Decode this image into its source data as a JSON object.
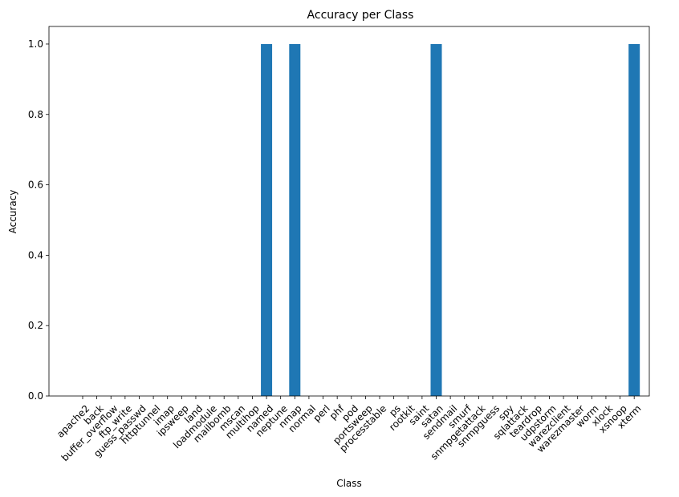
{
  "chart_data": {
    "type": "bar",
    "title": "Accuracy per Class",
    "xlabel": "Class",
    "ylabel": "Accuracy",
    "ylim": [
      0,
      1.05
    ],
    "yticks": [
      "0.0",
      "0.2",
      "0.4",
      "0.6",
      "0.8",
      "1.0"
    ],
    "bar_color": "#1f77b4",
    "grid": false,
    "categories": [
      "apache2",
      "back",
      "buffer_overflow",
      "ftp_write",
      "guess_passwd",
      "httptunnel",
      "imap",
      "ipsweep",
      "land",
      "loadmodule",
      "mailbomb",
      "mscan",
      "multihop",
      "named",
      "neptune",
      "nmap",
      "normal",
      "perl",
      "phf",
      "pod",
      "portsweep",
      "processtable",
      "ps",
      "rootkit",
      "saint",
      "satan",
      "sendmail",
      "smurf",
      "snmpgetattack",
      "snmpguess",
      "spy",
      "sqlattack",
      "teardrop",
      "udpstorm",
      "warezclient",
      "warezmaster",
      "worm",
      "xlock",
      "xsnoop",
      "xterm"
    ],
    "values": [
      0,
      0,
      0,
      0,
      0,
      0,
      0,
      0,
      0,
      0,
      0,
      0,
      0,
      1,
      0,
      1,
      0,
      0,
      0,
      0,
      0,
      0,
      0,
      0,
      0,
      1,
      0,
      0,
      0,
      0,
      0,
      0,
      0,
      0,
      0,
      0,
      0,
      0,
      0,
      1
    ]
  }
}
